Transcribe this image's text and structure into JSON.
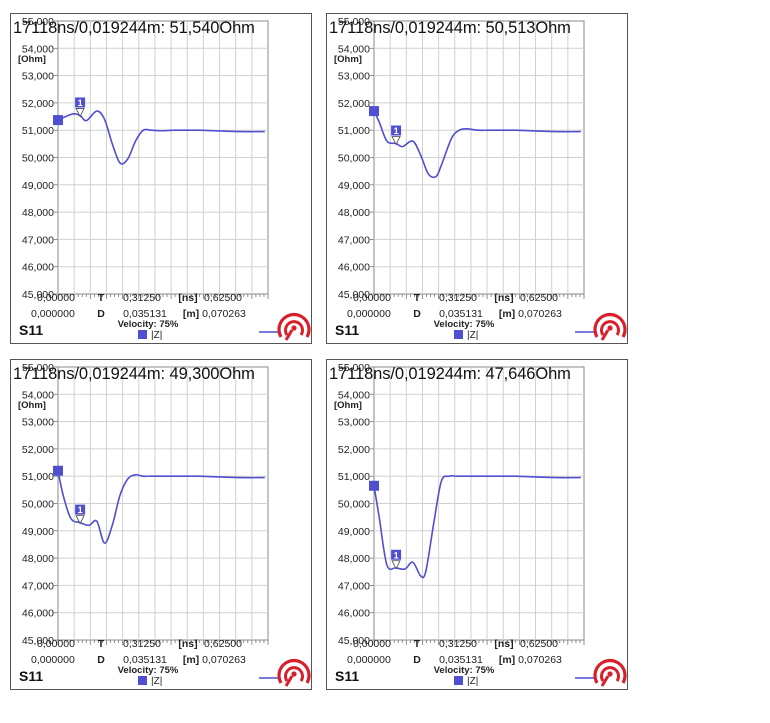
{
  "chart_data": [
    {
      "type": "line",
      "readout": "17118ns/0,019244m: 51,540Ohm",
      "marker_label": "1",
      "marker_x": 0.0855,
      "xaxis_time": {
        "ticks": [
          "0,00000",
          "T",
          "0,31250",
          "[ns]",
          "0,62500"
        ],
        "range": [
          0,
          0.8125
        ]
      },
      "xaxis_dist": {
        "ticks": [
          "0,000000",
          "D",
          "0,035131",
          "[m]",
          "0,070263"
        ]
      },
      "ylabel": "[Ohm]",
      "yticks": [
        "55,000",
        "54,000",
        "53,000",
        "52,000",
        "51,000",
        "50,000",
        "49,000",
        "48,000",
        "47,000",
        "46,000",
        "45,000"
      ],
      "ylim": [
        45000,
        55000
      ],
      "velocity": "Velocity: 75%",
      "port": "S11",
      "legend": "|Z|",
      "series": [
        {
          "x": [
            0,
            0.03,
            0.06,
            0.0855,
            0.11,
            0.15,
            0.18,
            0.21,
            0.24,
            0.27,
            0.3,
            0.33,
            0.36,
            0.4,
            0.45,
            0.5,
            0.55,
            0.6,
            0.7,
            0.8
          ],
          "y": [
            51370,
            51500,
            51600,
            51540,
            51350,
            51700,
            51400,
            50500,
            49800,
            49950,
            50600,
            51000,
            51000,
            50980,
            51000,
            51000,
            51000,
            50980,
            50950,
            50950
          ]
        }
      ]
    },
    {
      "type": "line",
      "readout": "17118ns/0,019244m: 50,513Ohm",
      "marker_label": "1",
      "marker_x": 0.0855,
      "xaxis_time": {
        "ticks": [
          "0,00000",
          "T",
          "0,31250",
          "[ns]",
          "0,62500"
        ],
        "range": [
          0,
          0.8125
        ]
      },
      "xaxis_dist": {
        "ticks": [
          "0,000000",
          "D",
          "0,035131",
          "[m]",
          "0,070263"
        ]
      },
      "ylabel": "[Ohm]",
      "yticks": [
        "55,000",
        "54,000",
        "53,000",
        "52,000",
        "51,000",
        "50,000",
        "49,000",
        "48,000",
        "47,000",
        "46,000",
        "45,000"
      ],
      "ylim": [
        45000,
        55000
      ],
      "velocity": "Velocity: 75%",
      "port": "S11",
      "legend": "|Z|",
      "series": [
        {
          "x": [
            0,
            0.02,
            0.05,
            0.0855,
            0.11,
            0.15,
            0.18,
            0.21,
            0.24,
            0.26,
            0.3,
            0.33,
            0.36,
            0.4,
            0.45,
            0.5,
            0.55,
            0.6,
            0.7,
            0.8
          ],
          "y": [
            51700,
            51300,
            50600,
            50513,
            50400,
            50600,
            50100,
            49400,
            49300,
            49700,
            50700,
            51000,
            51050,
            51000,
            51000,
            51000,
            51000,
            50980,
            50950,
            50950
          ]
        }
      ]
    },
    {
      "type": "line",
      "readout": "17118ns/0,019244m: 49,300Ohm",
      "marker_label": "1",
      "marker_x": 0.0855,
      "xaxis_time": {
        "ticks": [
          "0,00000",
          "T",
          "0,31250",
          "[ns]",
          "0,62500"
        ],
        "range": [
          0,
          0.8125
        ]
      },
      "xaxis_dist": {
        "ticks": [
          "0,000000",
          "D",
          "0,035131",
          "[m]",
          "0,070263"
        ]
      },
      "ylabel": "[Ohm]",
      "yticks": [
        "55,000",
        "54,000",
        "53,000",
        "52,000",
        "51,000",
        "50,000",
        "49,000",
        "48,000",
        "47,000",
        "46,000",
        "45,000"
      ],
      "ylim": [
        45000,
        55000
      ],
      "velocity": "Velocity: 75%",
      "port": "S11",
      "legend": "|Z|",
      "series": [
        {
          "x": [
            0,
            0.02,
            0.05,
            0.0855,
            0.12,
            0.15,
            0.18,
            0.21,
            0.24,
            0.27,
            0.3,
            0.33,
            0.36,
            0.4,
            0.45,
            0.5,
            0.55,
            0.6,
            0.7,
            0.8
          ],
          "y": [
            51200,
            50300,
            49450,
            49300,
            49200,
            49350,
            48550,
            49200,
            50300,
            50900,
            51050,
            51000,
            51000,
            51000,
            51000,
            51000,
            51000,
            50980,
            50950,
            50950
          ]
        }
      ]
    },
    {
      "type": "line",
      "readout": "17118ns/0,019244m: 47,646Ohm",
      "marker_label": "1",
      "marker_x": 0.0855,
      "xaxis_time": {
        "ticks": [
          "0,00000",
          "T",
          "0,31250",
          "[ns]",
          "0,62500"
        ],
        "range": [
          0,
          0.8125
        ]
      },
      "xaxis_dist": {
        "ticks": [
          "0,000000",
          "D",
          "0,035131",
          "[m]",
          "0,070263"
        ]
      },
      "ylabel": "[Ohm]",
      "yticks": [
        "55,000",
        "54,000",
        "53,000",
        "52,000",
        "51,000",
        "50,000",
        "49,000",
        "48,000",
        "47,000",
        "46,000",
        "45,000"
      ],
      "ylim": [
        45000,
        55000
      ],
      "velocity": "Velocity: 75%",
      "port": "S11",
      "legend": "|Z|",
      "series": [
        {
          "x": [
            0,
            0.02,
            0.05,
            0.0855,
            0.12,
            0.15,
            0.18,
            0.2,
            0.23,
            0.26,
            0.29,
            0.32,
            0.35,
            0.4,
            0.45,
            0.5,
            0.55,
            0.6,
            0.7,
            0.8
          ],
          "y": [
            50650,
            49500,
            47750,
            47646,
            47600,
            47850,
            47350,
            47500,
            49200,
            50800,
            51000,
            51000,
            51000,
            51000,
            51000,
            51000,
            51000,
            50980,
            50950,
            50950
          ]
        }
      ]
    }
  ],
  "colors": {
    "trace": "#4f4fd0",
    "grid": "#d0d0d0",
    "logo": "#d8202a",
    "logo_line": "#4f4fd0"
  }
}
